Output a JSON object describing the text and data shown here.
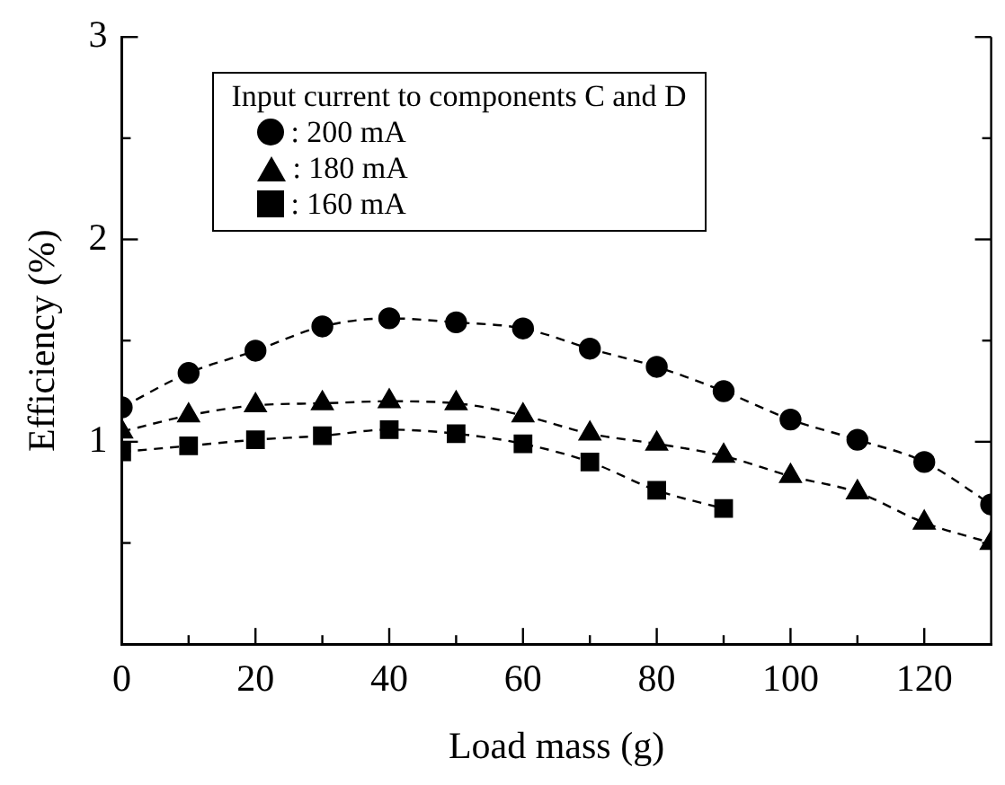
{
  "chart_data": {
    "type": "line",
    "xlabel": "Load mass (g)",
    "ylabel": "Efficiency (%)",
    "legend_title": "Input current to components C and D",
    "legend": "top",
    "grid": false,
    "line_style": "dashed",
    "x": [
      0,
      10,
      20,
      30,
      40,
      50,
      60,
      70,
      80,
      90,
      100,
      110,
      120,
      130
    ],
    "xlim": [
      0,
      130
    ],
    "xticks": [
      0,
      {
        "value": 10,
        "label": null
      },
      20,
      {
        "value": 30,
        "label": null
      },
      40,
      {
        "value": 50,
        "label": null
      },
      60,
      {
        "value": 70,
        "label": null
      },
      80,
      {
        "value": 90,
        "label": null
      },
      100,
      {
        "value": 110,
        "label": null
      },
      120
    ],
    "ylim": [
      0,
      3
    ],
    "yticks": [
      {
        "value": 0,
        "label": null
      },
      {
        "value": 0.5,
        "label": null
      },
      1,
      {
        "value": 1.5,
        "label": null
      },
      2,
      {
        "value": 2.5,
        "label": null
      },
      3
    ],
    "series": [
      {
        "name": ": 200 mA",
        "color": "#000000",
        "marker": "circle",
        "values": [
          1.17,
          1.34,
          1.45,
          1.57,
          1.61,
          1.59,
          1.56,
          1.46,
          1.37,
          1.25,
          1.11,
          1.01,
          0.9,
          0.69
        ]
      },
      {
        "name": ": 180 mA",
        "color": "#000000",
        "marker": "triangle",
        "values": [
          1.05,
          1.13,
          1.18,
          1.19,
          1.2,
          1.19,
          1.13,
          1.04,
          0.99,
          0.93,
          0.83,
          0.75,
          0.6,
          0.5
        ]
      },
      {
        "name": ": 160 mA",
        "color": "#000000",
        "marker": "square",
        "values": [
          0.95,
          0.98,
          1.01,
          1.03,
          1.06,
          1.04,
          0.99,
          0.9,
          0.76,
          0.67,
          null,
          null,
          null,
          null
        ]
      }
    ]
  }
}
